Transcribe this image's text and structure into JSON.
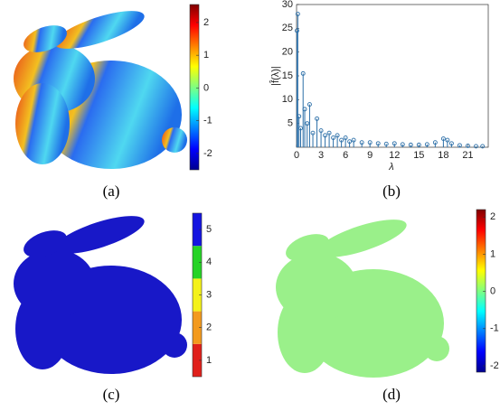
{
  "panels": [
    {
      "label": "(a)",
      "colorbar": {
        "lim": [
          -2.5,
          2.55
        ],
        "ticks": [
          2,
          1,
          0,
          -1,
          -2
        ]
      }
    },
    {
      "label": "(b)",
      "chart_data": {
        "type": "stem",
        "ylabel": "|f̂(λ)|",
        "xlabel": "λ",
        "color": "#2c6fa8",
        "xlim": [
          0,
          23.5
        ],
        "xticks": [
          0,
          3,
          6,
          9,
          12,
          15,
          18,
          21
        ],
        "ylim": [
          0,
          30
        ],
        "yticks": [
          5,
          10,
          15,
          20,
          25,
          30
        ],
        "x": [
          0.05,
          0.15,
          0.3,
          0.5,
          0.8,
          1.0,
          1.3,
          1.6,
          2,
          2.5,
          3,
          3.5,
          4,
          4.5,
          5,
          5.5,
          6,
          6.5,
          7,
          8,
          9,
          10,
          11,
          12,
          13,
          14,
          15,
          16,
          17,
          18,
          18.5,
          19,
          20,
          21,
          22,
          22.8
        ],
        "values": [
          24.5,
          28,
          6.5,
          4,
          15.5,
          8,
          5,
          9,
          3,
          6,
          3.5,
          2.5,
          3,
          2,
          2.5,
          1.5,
          2,
          1.2,
          1.5,
          1,
          1,
          0.8,
          0.7,
          0.8,
          0.6,
          0.5,
          0.5,
          0.6,
          1,
          1.8,
          1.5,
          0.8,
          0.4,
          0.3,
          0.2,
          0.2
        ]
      }
    },
    {
      "label": "(c)",
      "colorbar": {
        "lim": [
          0.5,
          5.5
        ],
        "ticks": [
          5,
          4,
          3,
          2,
          1
        ],
        "colors": [
          "#e0201b",
          "#f39a1e",
          "#f4f21a",
          "#26d326",
          "#1414e0"
        ]
      }
    },
    {
      "label": "(d)",
      "colorbar": {
        "lim": [
          -2.17,
          2.2
        ],
        "ticks": [
          2,
          1,
          0,
          -1,
          -2
        ]
      }
    }
  ]
}
